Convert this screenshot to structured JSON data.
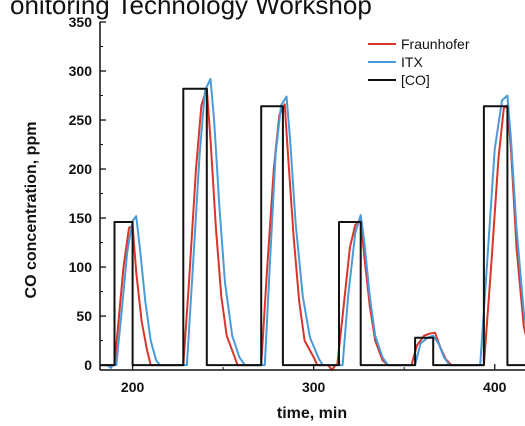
{
  "header": {
    "title_fragment": "onitoring Technology Workshop"
  },
  "chart_data": {
    "type": "line",
    "title": "",
    "xlabel": "time, min",
    "ylabel": "CO concentration, ppm",
    "xlim": [
      182,
      425
    ],
    "ylim": [
      -5,
      350
    ],
    "x_ticks": [
      200,
      300,
      400
    ],
    "x_tick_labels": [
      "200",
      "300",
      "400"
    ],
    "y_ticks": [
      0,
      50,
      100,
      150,
      200,
      250,
      300,
      350
    ],
    "y_tick_labels": [
      "0",
      "50",
      "100",
      "150",
      "200",
      "250",
      "300",
      "350"
    ],
    "grid": false,
    "legend": {
      "placement": "top-right"
    },
    "series": [
      {
        "name": "Fraunhofer",
        "color": "#d9352a",
        "points": [
          [
            182,
            0
          ],
          [
            190,
            0
          ],
          [
            192,
            40
          ],
          [
            195,
            100
          ],
          [
            198,
            140
          ],
          [
            200,
            142
          ],
          [
            202,
            95
          ],
          [
            205,
            45
          ],
          [
            208,
            15
          ],
          [
            210,
            0
          ],
          [
            228,
            0
          ],
          [
            231,
            80
          ],
          [
            235,
            200
          ],
          [
            238,
            265
          ],
          [
            241,
            282
          ],
          [
            243,
            230
          ],
          [
            246,
            140
          ],
          [
            249,
            70
          ],
          [
            252,
            30
          ],
          [
            256,
            10
          ],
          [
            258,
            0
          ],
          [
            271,
            0
          ],
          [
            274,
            90
          ],
          [
            278,
            200
          ],
          [
            281,
            255
          ],
          [
            284,
            266
          ],
          [
            286,
            210
          ],
          [
            289,
            130
          ],
          [
            292,
            65
          ],
          [
            295,
            25
          ],
          [
            300,
            8
          ],
          [
            302,
            0
          ],
          [
            308,
            0
          ],
          [
            310,
            -5
          ],
          [
            312,
            0
          ],
          [
            313,
            0
          ],
          [
            316,
            50
          ],
          [
            320,
            120
          ],
          [
            323,
            143
          ],
          [
            326,
            148
          ],
          [
            328,
            110
          ],
          [
            331,
            60
          ],
          [
            334,
            25
          ],
          [
            338,
            5
          ],
          [
            341,
            0
          ],
          [
            354,
            0
          ],
          [
            357,
            20
          ],
          [
            361,
            30
          ],
          [
            364,
            32
          ],
          [
            367,
            33
          ],
          [
            370,
            18
          ],
          [
            373,
            6
          ],
          [
            376,
            0
          ],
          [
            394,
            0
          ],
          [
            398,
            100
          ],
          [
            402,
            210
          ],
          [
            405,
            262
          ],
          [
            407,
            265
          ],
          [
            409,
            220
          ],
          [
            412,
            120
          ],
          [
            416,
            40
          ],
          [
            420,
            8
          ],
          [
            425,
            0
          ]
        ]
      },
      {
        "name": "ITX",
        "color": "#4a9bd8",
        "points": [
          [
            182,
            0
          ],
          [
            186,
            0
          ],
          [
            188,
            -3
          ],
          [
            189,
            0
          ],
          [
            191,
            0
          ],
          [
            194,
            55
          ],
          [
            197,
            115
          ],
          [
            200,
            147
          ],
          [
            202,
            152
          ],
          [
            204,
            120
          ],
          [
            207,
            65
          ],
          [
            210,
            25
          ],
          [
            213,
            5
          ],
          [
            215,
            0
          ],
          [
            230,
            0
          ],
          [
            233,
            90
          ],
          [
            237,
            215
          ],
          [
            240,
            280
          ],
          [
            243,
            292
          ],
          [
            245,
            250
          ],
          [
            248,
            160
          ],
          [
            251,
            85
          ],
          [
            255,
            30
          ],
          [
            259,
            8
          ],
          [
            262,
            0
          ],
          [
            273,
            0
          ],
          [
            276,
            110
          ],
          [
            279,
            215
          ],
          [
            282,
            265
          ],
          [
            285,
            274
          ],
          [
            287,
            230
          ],
          [
            290,
            145
          ],
          [
            294,
            70
          ],
          [
            298,
            28
          ],
          [
            303,
            6
          ],
          [
            305,
            0
          ],
          [
            316,
            0
          ],
          [
            319,
            70
          ],
          [
            323,
            135
          ],
          [
            326,
            153
          ],
          [
            328,
            125
          ],
          [
            331,
            70
          ],
          [
            334,
            30
          ],
          [
            338,
            8
          ],
          [
            341,
            0
          ],
          [
            356,
            0
          ],
          [
            359,
            22
          ],
          [
            363,
            28
          ],
          [
            366,
            30
          ],
          [
            369,
            22
          ],
          [
            372,
            8
          ],
          [
            375,
            0
          ],
          [
            392,
            0
          ],
          [
            396,
            110
          ],
          [
            400,
            220
          ],
          [
            404,
            270
          ],
          [
            407,
            275
          ],
          [
            409,
            230
          ],
          [
            412,
            140
          ],
          [
            416,
            55
          ],
          [
            420,
            12
          ],
          [
            425,
            0
          ]
        ]
      },
      {
        "name": "[CO]",
        "color": "#111111",
        "points": [
          [
            182,
            0
          ],
          [
            190,
            0
          ],
          [
            190,
            146
          ],
          [
            200,
            146
          ],
          [
            200,
            0
          ],
          [
            228,
            0
          ],
          [
            228,
            282
          ],
          [
            241,
            282
          ],
          [
            241,
            0
          ],
          [
            271,
            0
          ],
          [
            271,
            264
          ],
          [
            283,
            264
          ],
          [
            283,
            0
          ],
          [
            314,
            0
          ],
          [
            314,
            146
          ],
          [
            326,
            146
          ],
          [
            326,
            0
          ],
          [
            356,
            0
          ],
          [
            356,
            28
          ],
          [
            366,
            28
          ],
          [
            366,
            0
          ],
          [
            394,
            0
          ],
          [
            394,
            264
          ],
          [
            407,
            264
          ],
          [
            407,
            0
          ],
          [
            425,
            0
          ]
        ]
      }
    ]
  }
}
